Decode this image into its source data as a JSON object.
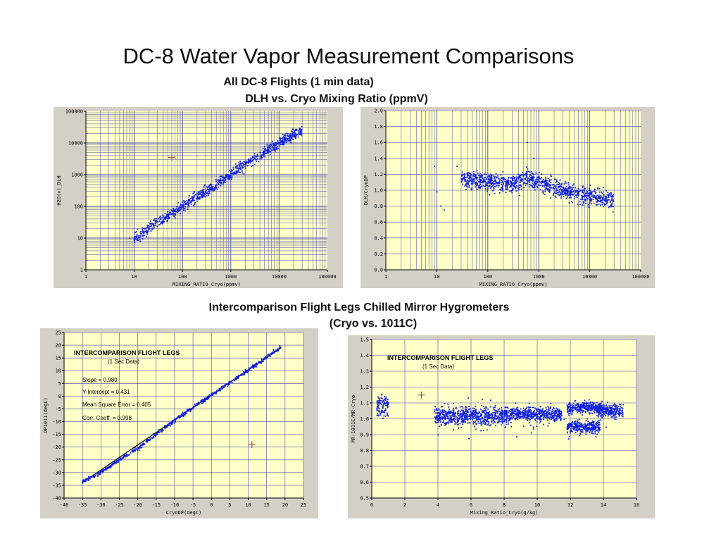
{
  "page": {
    "title": "DC-8 Water Vapor Measurement Comparisons",
    "subtitle1": "All DC-8 Flights (1 min data)",
    "subtitle2": "DLH vs. Cryo Mixing Ratio (ppmV)",
    "subtitle3": "Intercomparison Flight Legs Chilled Mirror Hygrometers",
    "subtitle4": "(Cryo vs. 1011C)"
  },
  "colors": {
    "plot_bg": "#ffffc8",
    "grid": "#4a4aa8",
    "points": "#1020e0",
    "panel": "#d4d0c8",
    "fit_line": "#000000",
    "marker": "#b05050"
  },
  "chart_data": [
    {
      "id": "c1",
      "type": "scatter",
      "xscale": "log",
      "yscale": "log",
      "xlim": [
        1,
        100000
      ],
      "ylim": [
        1,
        100000
      ],
      "xlabel": "MIXING_RATIO_Cryo(ppmv)",
      "ylabel": "H2O(v)_DLH",
      "xticks": [
        "1",
        "10",
        "100",
        "1000",
        "10000",
        "100000"
      ],
      "yticks": [
        "1",
        "10",
        "100",
        "1000",
        "10000",
        "100000"
      ],
      "trend": {
        "x": [
          10,
          20,
          50,
          100,
          300,
          1000,
          3000,
          10000,
          30000
        ],
        "y": [
          10,
          20,
          50,
          100,
          300,
          1000,
          3000,
          10000,
          25000
        ]
      },
      "spread": 0.12,
      "marker": {
        "x": 60,
        "y": 3500
      },
      "outliers": [
        [
          8,
          10
        ],
        [
          10,
          9
        ],
        [
          12,
          8.5
        ],
        [
          15,
          9.5
        ]
      ]
    },
    {
      "id": "c2",
      "type": "scatter",
      "xscale": "log",
      "yscale": "linear",
      "xlim": [
        1,
        100000
      ],
      "ylim": [
        0.0,
        2.0
      ],
      "xlabel": "MIXING_RATIO_Cryo(ppmv)",
      "ylabel": "DLH/CryoDP",
      "xticks": [
        "1",
        "10",
        "100",
        "1000",
        "10000",
        "100000"
      ],
      "yticks": [
        "0.0",
        "0.2",
        "0.4",
        "0.6",
        "0.8",
        "1.0",
        "1.2",
        "1.4",
        "1.6",
        "1.8",
        "2.0"
      ],
      "trend": {
        "x": [
          30,
          100,
          300,
          600,
          1000,
          3000,
          10000,
          30000
        ],
        "y": [
          1.15,
          1.1,
          1.08,
          1.15,
          1.1,
          1.0,
          0.93,
          0.88
        ]
      },
      "spread": 0.1,
      "outliers": [
        [
          12,
          0.8
        ],
        [
          14,
          0.75
        ],
        [
          10,
          0.98
        ],
        [
          25,
          1.3
        ],
        [
          9,
          1.3
        ],
        [
          600,
          1.6
        ],
        [
          800,
          1.4
        ]
      ]
    },
    {
      "id": "c3",
      "type": "scatter",
      "xscale": "linear",
      "yscale": "linear",
      "xlim": [
        -40,
        25
      ],
      "ylim": [
        -40,
        25
      ],
      "xlabel": "CryoDP(degC)",
      "ylabel": "DP1011(degC)",
      "xticks": [
        "-40",
        "-35",
        "-30",
        "-25",
        "-20",
        "-15",
        "-10",
        "-5",
        "0",
        "5",
        "10",
        "15",
        "20",
        "25"
      ],
      "yticks": [
        "-40",
        "-35",
        "-30",
        "-25",
        "-20",
        "-15",
        "-10",
        "-5",
        "0",
        "5",
        "10",
        "15",
        "20",
        "25"
      ],
      "fit": {
        "slope": 0.98,
        "intercept": 0.431,
        "x": [
          -35,
          19
        ]
      },
      "trend": {
        "x": [
          -35,
          -30,
          -25,
          -20,
          -10,
          -5,
          0,
          5,
          10,
          15,
          19
        ],
        "y": [
          -33.5,
          -30,
          -25,
          -20.5,
          -9.5,
          -4.5,
          0.4,
          5.3,
          10.2,
          15.1,
          19.5
        ]
      },
      "spread": 0.5,
      "marker": {
        "x": 11,
        "y": -19
      },
      "annotations": {
        "box_title": "INTERCOMPARISON FLIGHT LEGS",
        "box_sub": "(1 Sec Data)",
        "slope": "Slope = 0.980",
        "intercept": "Y-Intercept = 0.431",
        "mse": "Mean Square Error = 0.405",
        "corr": "Corr. Coeff. = 0.998"
      }
    },
    {
      "id": "c4",
      "type": "scatter",
      "xscale": "linear",
      "yscale": "linear",
      "xlim": [
        0,
        16
      ],
      "ylim": [
        0.5,
        1.5
      ],
      "xlabel": "Mixing_Ratio_Cryo(g/kg)",
      "ylabel": "MR-1011C/MR-Cryo",
      "xticks": [
        "0",
        "2",
        "4",
        "6",
        "8",
        "10",
        "12",
        "14",
        "16"
      ],
      "yticks": [
        "0.5",
        "0.6",
        "0.7",
        "0.8",
        "0.9",
        "1.0",
        "1.1",
        "1.2",
        "1.3",
        "1.4",
        "1.5"
      ],
      "clusters": [
        {
          "x": [
            0.3,
            1.0
          ],
          "y": 1.08,
          "sd": 0.05
        },
        {
          "x": [
            3.8,
            8.5
          ],
          "y": 1.02,
          "sd": 0.04
        },
        {
          "x": [
            8.5,
            11.5
          ],
          "y": 1.03,
          "sd": 0.03
        },
        {
          "x": [
            11.8,
            14.0
          ],
          "y": 1.07,
          "sd": 0.025
        },
        {
          "x": [
            11.8,
            13.8
          ],
          "y": 0.95,
          "sd": 0.025
        },
        {
          "x": [
            13.6,
            15.2
          ],
          "y": 1.05,
          "sd": 0.03
        }
      ],
      "marker": {
        "x": 3.0,
        "y": 1.15
      },
      "annotations": {
        "box_title": "INTERCOMPARISON FLIGHT LEGS",
        "box_sub": "(1 Sec Data)"
      }
    }
  ]
}
